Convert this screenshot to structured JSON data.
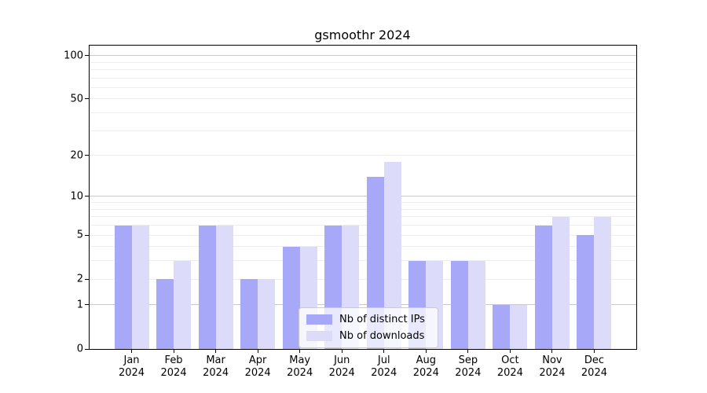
{
  "chart_data": {
    "type": "bar",
    "title": "gsmoothr 2024",
    "categories": [
      "Jan",
      "Feb",
      "Mar",
      "Apr",
      "May",
      "Jun",
      "Jul",
      "Aug",
      "Sep",
      "Oct",
      "Nov",
      "Dec"
    ],
    "x_sub_label": "2024",
    "series": [
      {
        "name": "Nb of distinct IPs",
        "color": "#a8a8f8",
        "values": [
          6,
          2,
          6,
          2,
          4,
          6,
          14,
          3,
          3,
          1,
          6,
          5
        ]
      },
      {
        "name": "Nb of downloads",
        "color": "#dcdcfa",
        "values": [
          6,
          3,
          6,
          2,
          4,
          6,
          18,
          3,
          3,
          1,
          7,
          7
        ]
      }
    ],
    "xlabel": "",
    "ylabel": "",
    "y_axis": {
      "scale": "log1p",
      "ticks": [
        0,
        1,
        2,
        5,
        10,
        20,
        50,
        100
      ],
      "major_gridlines": [
        1,
        10,
        100
      ],
      "minor_gridlines": [
        2,
        3,
        4,
        5,
        6,
        7,
        8,
        9,
        20,
        30,
        40,
        50,
        60,
        70,
        80,
        90
      ],
      "ylim": [
        0,
        117
      ]
    },
    "legend": {
      "position": "lower-center-inside"
    },
    "colors": {
      "grid_major": "#c8c8c8",
      "grid_minor": "#ededed",
      "axis": "#000000",
      "legend_border": "#cccccc"
    }
  }
}
